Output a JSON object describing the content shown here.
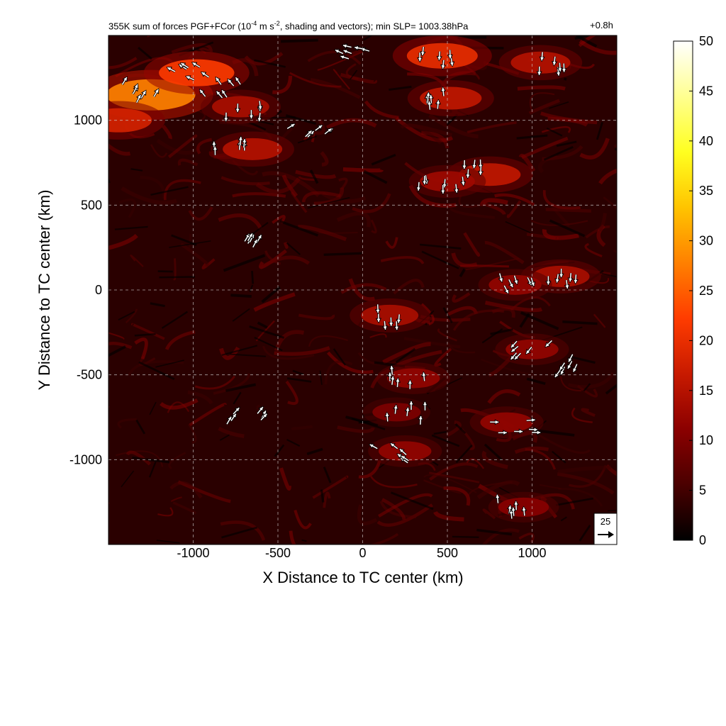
{
  "figure": {
    "title_prefix": "355K sum of forces PGF+FCor (10",
    "title_exp1": "-4",
    "title_mid": " m s",
    "title_exp2": "-2",
    "title_suffix": ", shading and vectors); min SLP= 1003.38hPa",
    "time_label": "+0.8h",
    "ref_vector_label": "25"
  },
  "chart_data": {
    "type": "heatmap",
    "xlabel": "X Distance to TC center (km)",
    "ylabel": "Y Distance to TC center (km)",
    "xlim": [
      -1500,
      1500
    ],
    "ylim": [
      -1500,
      1500
    ],
    "xticks": [
      -1000,
      -500,
      0,
      500,
      1000
    ],
    "yticks": [
      -1000,
      -500,
      0,
      500,
      1000
    ],
    "xtick_labels": [
      "-1000",
      "-500",
      "0",
      "500",
      "1000"
    ],
    "ytick_labels": [
      "-1000",
      "-500",
      "0",
      "500",
      "1000"
    ],
    "grid": true,
    "colorbar": {
      "min": 0,
      "max": 50,
      "ticks": [
        0,
        5,
        10,
        15,
        20,
        25,
        30,
        35,
        40,
        45,
        50
      ],
      "tick_labels": [
        "0",
        "5",
        "10",
        "15",
        "20",
        "25",
        "30",
        "35",
        "40",
        "45",
        "50"
      ],
      "colormap": [
        "#000000",
        "#4a0000",
        "#8b0000",
        "#c81a00",
        "#ff3c00",
        "#ff8000",
        "#ffc400",
        "#ffff20",
        "#ffff90",
        "#ffffff"
      ]
    },
    "reference_vector_magnitude": 25,
    "hotspots": [
      {
        "x": -1250,
        "y": 1150,
        "value": 28
      },
      {
        "x": -980,
        "y": 1280,
        "value": 22
      },
      {
        "x": -720,
        "y": 1080,
        "value": 14
      },
      {
        "x": -650,
        "y": 830,
        "value": 15
      },
      {
        "x": 470,
        "y": 1380,
        "value": 20
      },
      {
        "x": 520,
        "y": 1130,
        "value": 16
      },
      {
        "x": 1050,
        "y": 1340,
        "value": 15
      },
      {
        "x": 750,
        "y": 680,
        "value": 16
      },
      {
        "x": 500,
        "y": 640,
        "value": 13
      },
      {
        "x": 1170,
        "y": 80,
        "value": 14
      },
      {
        "x": 900,
        "y": 30,
        "value": 12
      },
      {
        "x": 160,
        "y": -150,
        "value": 14
      },
      {
        "x": 1000,
        "y": -350,
        "value": 12
      },
      {
        "x": 300,
        "y": -520,
        "value": 12
      },
      {
        "x": 850,
        "y": -780,
        "value": 12
      },
      {
        "x": 250,
        "y": -950,
        "value": 12
      },
      {
        "x": 950,
        "y": -1280,
        "value": 11
      },
      {
        "x": 200,
        "y": -720,
        "value": 10
      },
      {
        "x": -1440,
        "y": 1000,
        "value": 18
      }
    ],
    "vector_clusters": [
      {
        "x": -1280,
        "y": 1180,
        "u": 0.5,
        "v": 1.0
      },
      {
        "x": -1050,
        "y": 1290,
        "u": -1.0,
        "v": 0.6
      },
      {
        "x": -860,
        "y": 1200,
        "u": -0.6,
        "v": 0.8
      },
      {
        "x": -720,
        "y": 1070,
        "u": 0.0,
        "v": -1.0
      },
      {
        "x": -800,
        "y": 830,
        "u": 0.0,
        "v": 1.0
      },
      {
        "x": -300,
        "y": 930,
        "u": 0.8,
        "v": 0.6
      },
      {
        "x": -100,
        "y": 1400,
        "u": -0.8,
        "v": 0.3
      },
      {
        "x": 450,
        "y": 1360,
        "u": 0.0,
        "v": -1.0
      },
      {
        "x": 460,
        "y": 1140,
        "u": 0.0,
        "v": 1.0
      },
      {
        "x": 1100,
        "y": 1340,
        "u": 0.0,
        "v": -1.0
      },
      {
        "x": 680,
        "y": 690,
        "u": 0.0,
        "v": -1.0
      },
      {
        "x": 450,
        "y": 610,
        "u": 0.0,
        "v": -1.0
      },
      {
        "x": 1150,
        "y": 70,
        "u": 0.0,
        "v": -1.0
      },
      {
        "x": 900,
        "y": 20,
        "u": 0.4,
        "v": -0.9
      },
      {
        "x": 130,
        "y": -160,
        "u": 0.0,
        "v": -1.0
      },
      {
        "x": 1000,
        "y": -350,
        "u": -0.7,
        "v": -0.7
      },
      {
        "x": 250,
        "y": -520,
        "u": 0.0,
        "v": 1.0
      },
      {
        "x": 900,
        "y": -800,
        "u": 1.0,
        "v": 0.0
      },
      {
        "x": 180,
        "y": -960,
        "u": -0.8,
        "v": 0.6
      },
      {
        "x": 880,
        "y": -1280,
        "u": 0.0,
        "v": 1.0
      },
      {
        "x": 260,
        "y": -720,
        "u": 0.0,
        "v": 1.0
      },
      {
        "x": -720,
        "y": 300,
        "u": 0.5,
        "v": 0.8
      },
      {
        "x": -700,
        "y": -760,
        "u": 0.6,
        "v": 0.8
      },
      {
        "x": 1250,
        "y": -450,
        "u": -0.5,
        "v": -0.9
      }
    ]
  }
}
